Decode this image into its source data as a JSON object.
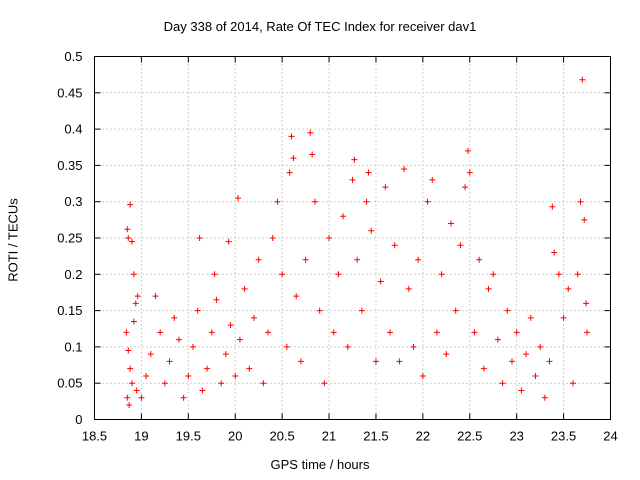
{
  "chart_data": {
    "type": "scatter",
    "title": "Day 338 of 2014, Rate Of TEC Index for receiver dav1",
    "xlabel": "GPS time / hours",
    "ylabel": "ROTI / TECUs",
    "xlim": [
      18.5,
      24
    ],
    "ylim": [
      0,
      0.5
    ],
    "x_ticks": [
      18.5,
      19,
      19.5,
      20,
      20.5,
      21,
      21.5,
      22,
      22.5,
      23,
      23.5,
      24
    ],
    "y_ticks": [
      0,
      0.05,
      0.1,
      0.15,
      0.2,
      0.25,
      0.3,
      0.35,
      0.4,
      0.45,
      0.5
    ],
    "x_tick_labels": [
      "18.5",
      "19",
      "19.5",
      "20",
      "20.5",
      "21",
      "21.5",
      "22",
      "22.5",
      "23",
      "23.5",
      "24"
    ],
    "y_tick_labels": [
      "0",
      "0.05",
      "0.1",
      "0.15",
      "0.2",
      "0.25",
      "0.3",
      "0.35",
      "0.4",
      "0.45",
      "0.5"
    ],
    "grid": true,
    "marker": "+",
    "color": "#ff0000",
    "series": [
      {
        "points": [
          [
            18.85,
            0.262
          ],
          [
            18.86,
            0.25
          ],
          [
            18.88,
            0.296
          ],
          [
            18.9,
            0.245
          ],
          [
            18.92,
            0.2
          ],
          [
            18.84,
            0.12
          ],
          [
            18.86,
            0.095
          ],
          [
            18.88,
            0.07
          ],
          [
            18.9,
            0.05
          ],
          [
            18.92,
            0.135
          ],
          [
            18.94,
            0.16
          ],
          [
            18.96,
            0.17
          ],
          [
            18.85,
            0.03
          ],
          [
            18.87,
            0.02
          ],
          [
            18.95,
            0.04
          ],
          [
            19.0,
            0.03
          ],
          [
            19.05,
            0.06
          ],
          [
            19.1,
            0.09
          ],
          [
            19.15,
            0.17
          ],
          [
            19.2,
            0.12
          ],
          [
            19.25,
            0.05
          ],
          [
            19.3,
            0.08
          ],
          [
            19.35,
            0.14
          ],
          [
            19.4,
            0.11
          ],
          [
            19.45,
            0.03
          ],
          [
            19.5,
            0.06
          ],
          [
            19.55,
            0.1
          ],
          [
            19.6,
            0.15
          ],
          [
            19.62,
            0.25
          ],
          [
            19.65,
            0.04
          ],
          [
            19.7,
            0.07
          ],
          [
            19.75,
            0.12
          ],
          [
            19.78,
            0.2
          ],
          [
            19.8,
            0.165
          ],
          [
            19.85,
            0.05
          ],
          [
            19.9,
            0.09
          ],
          [
            19.93,
            0.245
          ],
          [
            19.95,
            0.13
          ],
          [
            20.0,
            0.06
          ],
          [
            20.03,
            0.305
          ],
          [
            20.05,
            0.11
          ],
          [
            20.1,
            0.18
          ],
          [
            20.15,
            0.07
          ],
          [
            20.2,
            0.14
          ],
          [
            20.25,
            0.22
          ],
          [
            20.3,
            0.05
          ],
          [
            20.35,
            0.12
          ],
          [
            20.4,
            0.25
          ],
          [
            20.45,
            0.3
          ],
          [
            20.5,
            0.2
          ],
          [
            20.55,
            0.1
          ],
          [
            20.58,
            0.34
          ],
          [
            20.6,
            0.39
          ],
          [
            20.62,
            0.36
          ],
          [
            20.65,
            0.17
          ],
          [
            20.7,
            0.08
          ],
          [
            20.75,
            0.22
          ],
          [
            20.8,
            0.395
          ],
          [
            20.82,
            0.365
          ],
          [
            20.85,
            0.3
          ],
          [
            20.9,
            0.15
          ],
          [
            20.95,
            0.05
          ],
          [
            21.0,
            0.25
          ],
          [
            21.05,
            0.12
          ],
          [
            21.1,
            0.2
          ],
          [
            21.15,
            0.28
          ],
          [
            21.2,
            0.1
          ],
          [
            21.25,
            0.33
          ],
          [
            21.27,
            0.358
          ],
          [
            21.3,
            0.22
          ],
          [
            21.35,
            0.15
          ],
          [
            21.4,
            0.3
          ],
          [
            21.42,
            0.34
          ],
          [
            21.45,
            0.26
          ],
          [
            21.5,
            0.08
          ],
          [
            21.55,
            0.19
          ],
          [
            21.6,
            0.32
          ],
          [
            21.65,
            0.12
          ],
          [
            21.7,
            0.24
          ],
          [
            21.75,
            0.08
          ],
          [
            21.8,
            0.345
          ],
          [
            21.85,
            0.18
          ],
          [
            21.9,
            0.1
          ],
          [
            21.95,
            0.22
          ],
          [
            22.0,
            0.06
          ],
          [
            22.05,
            0.3
          ],
          [
            22.1,
            0.33
          ],
          [
            22.15,
            0.12
          ],
          [
            22.2,
            0.2
          ],
          [
            22.25,
            0.09
          ],
          [
            22.3,
            0.27
          ],
          [
            22.35,
            0.15
          ],
          [
            22.4,
            0.24
          ],
          [
            22.45,
            0.32
          ],
          [
            22.48,
            0.37
          ],
          [
            22.5,
            0.34
          ],
          [
            22.55,
            0.12
          ],
          [
            22.6,
            0.22
          ],
          [
            22.65,
            0.07
          ],
          [
            22.7,
            0.18
          ],
          [
            22.75,
            0.2
          ],
          [
            22.8,
            0.11
          ],
          [
            22.85,
            0.05
          ],
          [
            22.9,
            0.15
          ],
          [
            22.95,
            0.08
          ],
          [
            23.0,
            0.12
          ],
          [
            23.05,
            0.04
          ],
          [
            23.1,
            0.09
          ],
          [
            23.15,
            0.14
          ],
          [
            23.2,
            0.06
          ],
          [
            23.25,
            0.1
          ],
          [
            23.3,
            0.03
          ],
          [
            23.35,
            0.08
          ],
          [
            23.38,
            0.293
          ],
          [
            23.4,
            0.23
          ],
          [
            23.45,
            0.2
          ],
          [
            23.5,
            0.14
          ],
          [
            23.55,
            0.18
          ],
          [
            23.6,
            0.05
          ],
          [
            23.65,
            0.2
          ],
          [
            23.68,
            0.3
          ],
          [
            23.7,
            0.468
          ],
          [
            23.72,
            0.275
          ],
          [
            23.74,
            0.16
          ],
          [
            23.75,
            0.12
          ]
        ]
      }
    ]
  }
}
